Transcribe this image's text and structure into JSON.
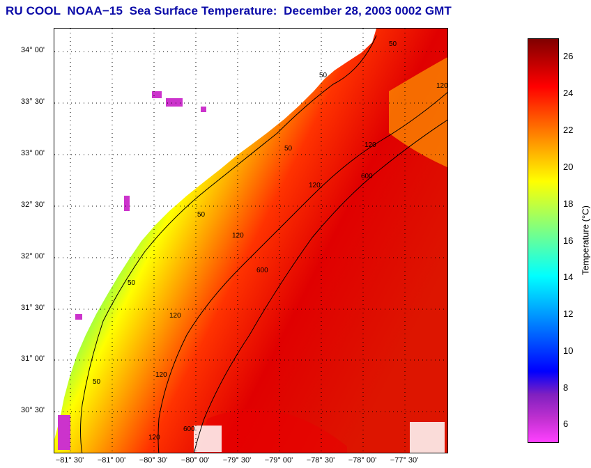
{
  "title": "RU COOL  NOAA−15  Sea Surface Temperature:  December 28, 2003 0002 GMT",
  "map": {
    "y_ticks": [
      "34° 00'",
      "33° 30'",
      "33° 00'",
      "32° 30'",
      "32° 00'",
      "31° 30'",
      "31° 00'",
      "30° 30'"
    ],
    "x_ticks": [
      "−81° 30'",
      "−81° 00'",
      "−80° 30'",
      "−80° 00'",
      "−79° 30'",
      "−79° 00'",
      "−78° 30'",
      "−78° 00'",
      "−77° 30'"
    ],
    "contour_labels": [
      "50",
      "50",
      "50",
      "50",
      "50",
      "50",
      "120",
      "120",
      "120",
      "120",
      "120",
      "120",
      "120",
      "600",
      "600",
      "600"
    ],
    "land_color": "#ffffff",
    "ocean_gradient": [
      "#ff44dd",
      "#0000ff",
      "#00aaff",
      "#00ffff",
      "#66ff66",
      "#ffff00",
      "#ffaa00",
      "#ff3300",
      "#dd0000"
    ]
  },
  "colorbar": {
    "label": "Temperature (°C)",
    "min": 5,
    "max": 27,
    "ticks": [
      "26",
      "24",
      "22",
      "20",
      "18",
      "16",
      "14",
      "12",
      "10",
      "8",
      "6"
    ],
    "colors": [
      "#800000",
      "#c00000",
      "#ff0000",
      "#ff4000",
      "#ff8000",
      "#ffc000",
      "#ffff00",
      "#c0ff40",
      "#80ff80",
      "#40ffc0",
      "#00ffff",
      "#00c0ff",
      "#0080ff",
      "#0040ff",
      "#0000ff",
      "#8020c0",
      "#c030d0",
      "#ff40ff"
    ]
  }
}
